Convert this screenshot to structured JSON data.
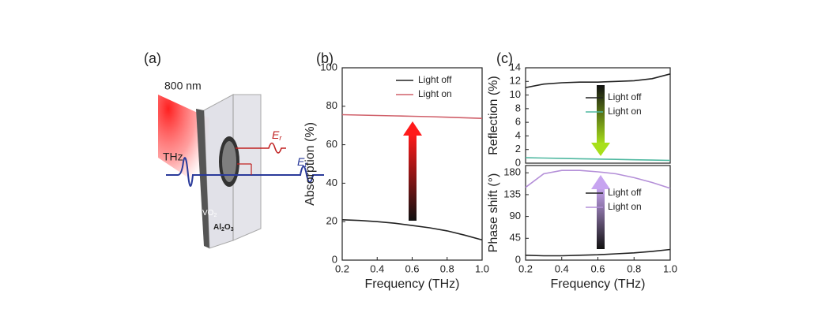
{
  "panel_a": {
    "label": "(a)",
    "pump": "800 nm",
    "thz": "THz",
    "er": [
      "E",
      "r"
    ],
    "et": [
      "E",
      "t"
    ],
    "vo2": [
      "VO",
      "2"
    ],
    "al2o3": [
      "Al",
      "2",
      "O",
      "3"
    ]
  },
  "chart_data": [
    {
      "type": "line",
      "panel_label": "(b)",
      "xlabel": "Frequency (THz)",
      "ylabel": "Absorption (%)",
      "x": [
        0.2,
        0.3,
        0.4,
        0.5,
        0.6,
        0.7,
        0.8,
        0.9,
        1.0
      ],
      "series": [
        {
          "name": "Light off",
          "color": "#222222",
          "values": [
            21,
            20.6,
            20,
            19.2,
            18,
            16.8,
            15.2,
            13,
            10.5
          ]
        },
        {
          "name": "Light on",
          "color": "#d0606a",
          "values": [
            75.6,
            75.4,
            75.2,
            75,
            74.8,
            74.6,
            74.3,
            74,
            73.7
          ]
        }
      ],
      "xlim": [
        0.2,
        1.0
      ],
      "xticks": [
        0.2,
        0.4,
        0.6,
        0.8,
        {
          "value": 1.0,
          "label": "1.0"
        }
      ],
      "ylim": [
        0,
        100
      ],
      "yticks": [
        0,
        20,
        40,
        60,
        80,
        100
      ]
    },
    {
      "type": "line",
      "panel_label": "(c)",
      "ylabel": "Reflection (%)",
      "x": [
        0.2,
        0.3,
        0.4,
        0.5,
        0.6,
        0.7,
        0.8,
        0.9,
        1.0
      ],
      "series": [
        {
          "name": "Light off",
          "color": "#222222",
          "values": [
            11.1,
            11.6,
            11.8,
            11.9,
            11.9,
            12,
            12.1,
            12.4,
            13.1
          ]
        },
        {
          "name": "Light on",
          "color": "#4fb8a0",
          "values": [
            0.8,
            0.75,
            0.7,
            0.65,
            0.6,
            0.55,
            0.5,
            0.45,
            0.4
          ]
        }
      ],
      "xlim": [
        0.2,
        1.0
      ],
      "ylim": [
        0,
        14
      ],
      "yticks": [
        0,
        2,
        4,
        6,
        8,
        10,
        12,
        14
      ]
    },
    {
      "type": "line",
      "xlabel": "Frequency (THz)",
      "ylabel": "Phase shift (°)",
      "x": [
        0.2,
        0.3,
        0.4,
        0.5,
        0.6,
        0.7,
        0.8,
        0.9,
        1.0
      ],
      "series": [
        {
          "name": "Light off",
          "color": "#222222",
          "values": [
            10,
            9,
            9,
            10,
            11,
            13,
            15,
            18,
            22
          ]
        },
        {
          "name": "Light on",
          "color": "#b48fd8",
          "values": [
            150,
            178,
            185,
            185,
            182,
            178,
            170,
            160,
            148
          ]
        }
      ],
      "xlim": [
        0.2,
        1.0
      ],
      "xticks": [
        0.2,
        0.4,
        0.6,
        0.8,
        {
          "value": 1.0,
          "label": "1.0"
        }
      ],
      "ylim": [
        0,
        195
      ],
      "yticks": [
        0,
        45,
        90,
        135,
        180
      ]
    }
  ]
}
